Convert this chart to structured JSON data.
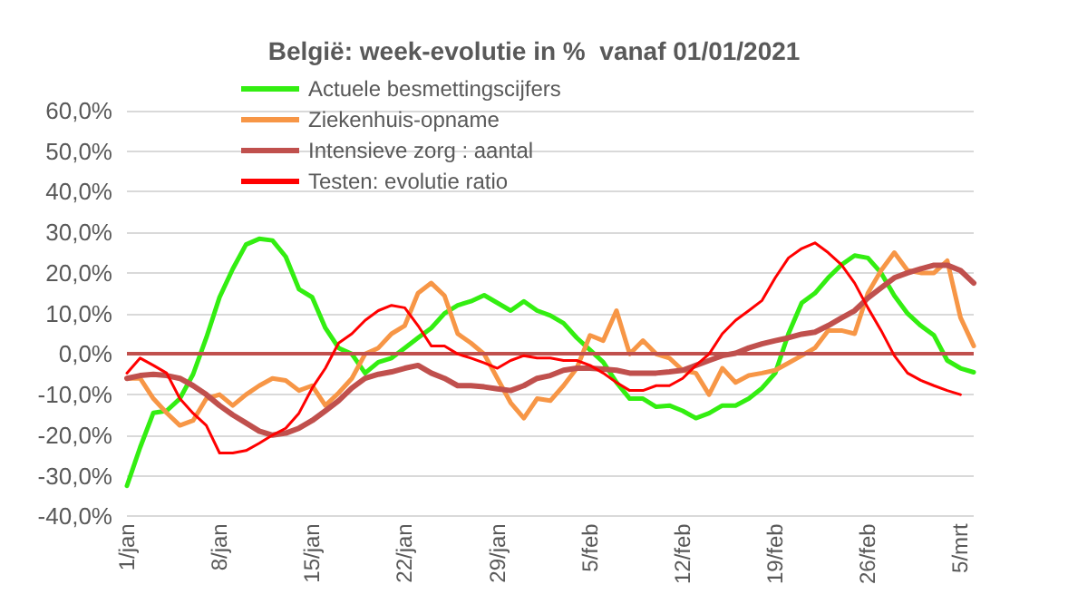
{
  "chart_data": {
    "type": "line",
    "title": "België: week-evolutie in %  vanaf 01/01/2021",
    "categories": [
      "1/jan",
      null,
      null,
      null,
      null,
      null,
      null,
      "8/jan",
      null,
      null,
      null,
      null,
      null,
      null,
      "15/jan",
      null,
      null,
      null,
      null,
      null,
      null,
      "22/jan",
      null,
      null,
      null,
      null,
      null,
      null,
      "29/jan",
      null,
      null,
      null,
      null,
      null,
      null,
      "5/feb",
      null,
      null,
      null,
      null,
      null,
      null,
      "12/feb",
      null,
      null,
      null,
      null,
      null,
      null,
      "19/feb",
      null,
      null,
      null,
      null,
      null,
      null,
      "26/feb",
      null,
      null,
      null,
      null,
      null,
      null,
      "5/mrt",
      null
    ],
    "series": [
      {
        "name": "Actuele besmettingscijfers",
        "color": "#33ee11",
        "values": [
          -32.5,
          -23,
          -14.5,
          -14,
          -11,
          -5,
          4,
          14,
          21,
          27,
          28.4,
          28,
          24,
          16,
          14,
          6.4,
          1.5,
          0,
          -4.7,
          -2,
          -1,
          1.5,
          4,
          6.4,
          10,
          12,
          13,
          14.5,
          12.6,
          10.7,
          13,
          10.7,
          9.5,
          7.6,
          4,
          1,
          -2,
          -7,
          -11,
          -11,
          -13,
          -12.7,
          -14,
          -15.8,
          -14.6,
          -12.7,
          -12.7,
          -11,
          -8.4,
          -4.7,
          5,
          12.6,
          15,
          18.8,
          22,
          24.3,
          23.7,
          20,
          14.4,
          10,
          7,
          4.6,
          -1.6,
          -3.5,
          -4.5
        ]
      },
      {
        "name": "Ziekenhuis-opname",
        "color": "#f79646",
        "values": [
          -6,
          -6,
          -11,
          -14.5,
          -17.6,
          -16.4,
          -11,
          -10,
          -12.7,
          -10,
          -7.8,
          -6,
          -6.5,
          -9,
          -7.8,
          -12.7,
          -9.6,
          -6,
          0,
          1.5,
          5,
          7,
          15,
          17.5,
          14.4,
          5,
          2.7,
          0,
          -6,
          -12,
          -15.8,
          -11,
          -11.5,
          -7.8,
          -3.5,
          4.6,
          3.3,
          10.7,
          0,
          3.3,
          0,
          -1,
          -4,
          -4.7,
          -10,
          -3.5,
          -7,
          -5.3,
          -4.7,
          -4,
          -2.2,
          -0.4,
          1.5,
          5.8,
          5.8,
          5,
          15,
          20.6,
          25,
          20.6,
          20,
          20,
          23,
          9,
          2
        ]
      },
      {
        "name": "Intensieve zorg : aantal",
        "color": "#c0504d",
        "values": [
          -6,
          -5.3,
          -5,
          -5.3,
          -6,
          -7.8,
          -10,
          -12.7,
          -15,
          -17,
          -19,
          -20,
          -19.5,
          -18.3,
          -16.4,
          -14,
          -11.5,
          -8.4,
          -6,
          -5,
          -4.4,
          -3.5,
          -2.8,
          -4.7,
          -6,
          -7.8,
          -7.8,
          -8.1,
          -8.6,
          -9,
          -7.8,
          -6,
          -5.3,
          -4,
          -3.5,
          -3.5,
          -3.7,
          -4,
          -4.7,
          -4.7,
          -4.7,
          -4.4,
          -4,
          -2.8,
          -1.6,
          -0.4,
          0.2,
          1.5,
          2.5,
          3.3,
          4,
          4.9,
          5.4,
          7,
          8.9,
          10.7,
          13.8,
          16.3,
          18.8,
          20,
          21,
          21.9,
          21.9,
          20.6,
          17.5
        ]
      },
      {
        "name": "Testen: evolutie ratio",
        "color": "#ff0000",
        "values": [
          -4.7,
          -1,
          -2.8,
          -4.7,
          -11,
          -14.6,
          -17.6,
          -24.4,
          -24.4,
          -23.8,
          -22,
          -20,
          -18.3,
          -14.6,
          -8.4,
          -3.5,
          2.7,
          5,
          8.3,
          10.7,
          12,
          11.4,
          7,
          2,
          2,
          0,
          -1,
          -2.2,
          -3.5,
          -1.6,
          -0.4,
          -1,
          -1,
          -1.6,
          -1.6,
          -2.8,
          -4.7,
          -7,
          -9,
          -9,
          -7.8,
          -7.8,
          -6,
          -2.8,
          0,
          5,
          8.3,
          10.7,
          13.2,
          18.8,
          23.7,
          26,
          27.4,
          25,
          22,
          17.5,
          11.4,
          5.8,
          -0.4,
          -4.7,
          -6.5,
          -7.8,
          -9,
          -10,
          null
        ]
      }
    ],
    "ylim": [
      -40,
      60
    ],
    "yticks": [
      {
        "value": -40,
        "label": "-40,0%"
      },
      {
        "value": -30,
        "label": "-30,0%"
      },
      {
        "value": -20,
        "label": "-20,0%"
      },
      {
        "value": -10,
        "label": "-10,0%"
      },
      {
        "value": 0,
        "label": "0,0%"
      },
      {
        "value": 10,
        "label": "10,0%"
      },
      {
        "value": 20,
        "label": "20,0%"
      },
      {
        "value": 30,
        "label": "30,0%"
      },
      {
        "value": 40,
        "label": "40,0%"
      },
      {
        "value": 50,
        "label": "50,0%"
      },
      {
        "value": 60,
        "label": "60,0%"
      }
    ],
    "ref_lines": [
      {
        "axis": "y",
        "value": 0,
        "color": "#c0504d"
      }
    ],
    "grid": "y",
    "legend": "top",
    "marker": "none",
    "line_style": "solid"
  }
}
